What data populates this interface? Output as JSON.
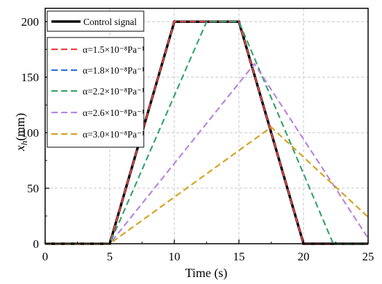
{
  "chart_data": {
    "type": "line",
    "xlabel": "Time (s)",
    "ylabel": {
      "var": "x",
      "sub": "h",
      "unit": "(mm)"
    },
    "xlim": [
      0,
      25
    ],
    "ylim": [
      0,
      212
    ],
    "xticks": [
      0,
      5,
      10,
      15,
      20,
      25
    ],
    "yticks": [
      0,
      50,
      100,
      150,
      200
    ],
    "grid": true,
    "legend": "top-left",
    "series": [
      {
        "name": "Control signal",
        "color": "#000000",
        "style": "solid",
        "x": [
          0,
          5,
          10,
          15,
          20,
          25
        ],
        "y": [
          0,
          0,
          200,
          200,
          0,
          0
        ]
      },
      {
        "name": "α=1.5×10⁻⁸Pa⁻¹",
        "color": "#e8413c",
        "style": "dashed",
        "x": [
          0,
          5,
          10,
          15,
          20,
          25
        ],
        "y": [
          0,
          0,
          200,
          200,
          0,
          0
        ]
      },
      {
        "name": "α=1.8×10⁻⁸Pa⁻¹",
        "color": "#2e6fd9",
        "style": "dashed",
        "x": [
          0,
          5,
          10,
          15,
          20,
          25
        ],
        "y": [
          0,
          0,
          200,
          200,
          0,
          0
        ]
      },
      {
        "name": "α=2.2×10⁻⁸Pa⁻¹",
        "color": "#34a46e",
        "style": "dashed",
        "x": [
          0,
          5,
          12.5,
          15,
          22.3,
          25
        ],
        "y": [
          0,
          0,
          200,
          200,
          0,
          0
        ]
      },
      {
        "name": "α=2.6×10⁻⁸Pa⁻¹",
        "color": "#b983e3",
        "style": "dashed",
        "x": [
          0,
          5,
          16.2,
          25
        ],
        "y": [
          0,
          0,
          162,
          5
        ]
      },
      {
        "name": "α=3.0×10⁻⁸Pa⁻¹",
        "color": "#d4a21c",
        "style": "dashed",
        "x": [
          0,
          5,
          17.5,
          25
        ],
        "y": [
          0,
          0,
          105,
          24
        ]
      }
    ]
  }
}
